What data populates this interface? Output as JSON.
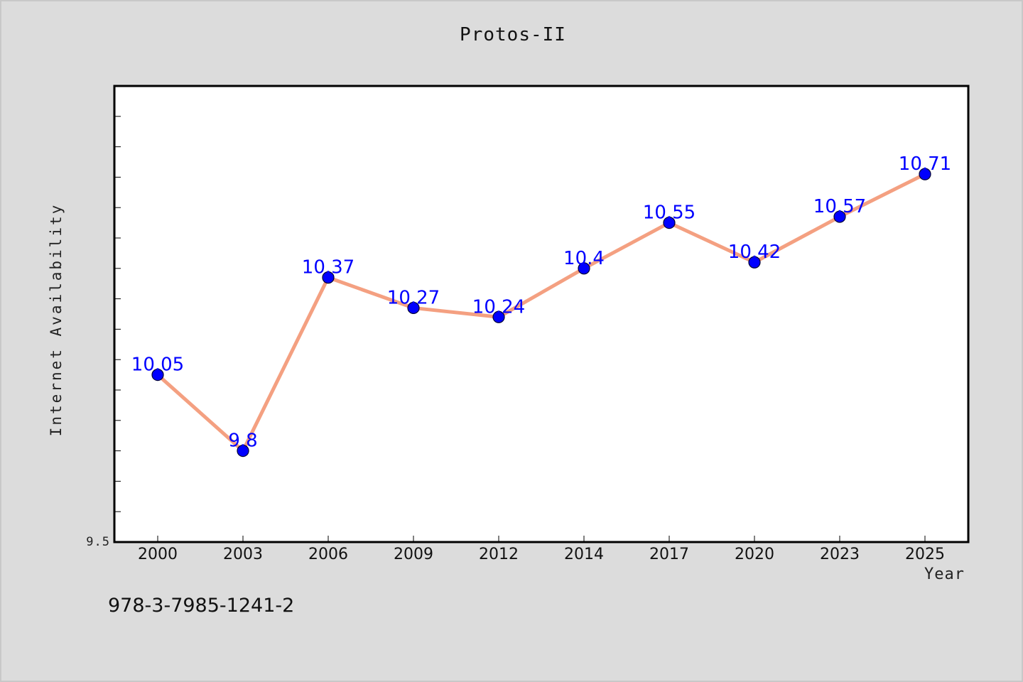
{
  "chart_data": {
    "type": "line",
    "title": "Protos-II",
    "xlabel": "Year",
    "ylabel": "Internet Availability",
    "categories": [
      "2000",
      "2003",
      "2006",
      "2009",
      "2012",
      "2014",
      "2017",
      "2020",
      "2023",
      "2025"
    ],
    "series": [
      {
        "values": [
          10.05,
          9.8,
          10.37,
          10.27,
          10.24,
          10.4,
          10.55,
          10.42,
          10.57,
          10.71
        ],
        "data_labels": [
          "10.05",
          "9.8",
          "10.37",
          "10.27",
          "10.24",
          "10.4",
          "10.55",
          "10.42",
          "10.57",
          "10.71"
        ]
      }
    ],
    "ylim": [
      9.5,
      11.0
    ],
    "y_tick_labels": [
      "9.5"
    ],
    "y_minor_step": 0.1,
    "grid": false,
    "legend": "none",
    "colors": {
      "line": "#f4a081",
      "marker": "#0000ff",
      "data_label": "#0000ff",
      "plot_bg": "#ffffff",
      "figure_bg": "#dcdcdc"
    }
  },
  "footer": {
    "code": "978-3-7985-1241-2"
  }
}
